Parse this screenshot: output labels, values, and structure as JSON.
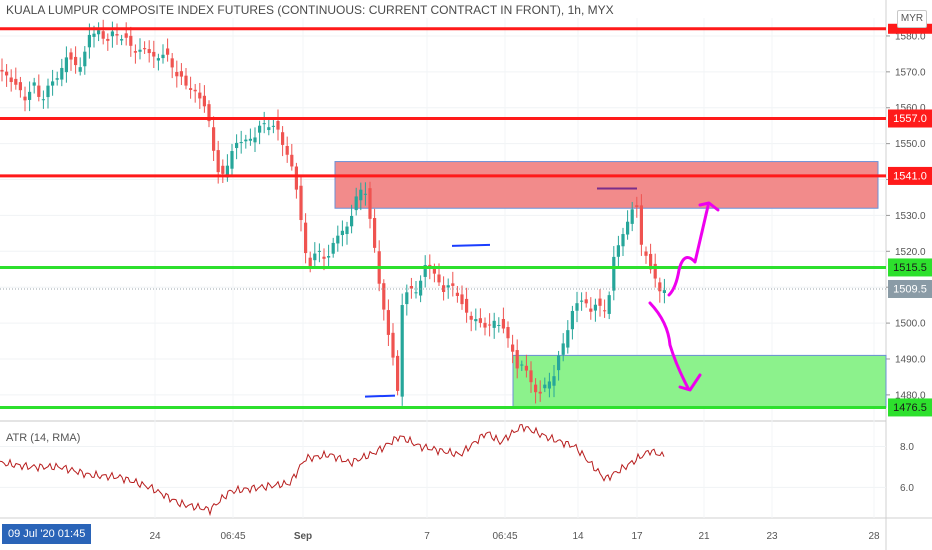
{
  "title": "KUALA LUMPUR COMPOSITE INDEX FUTURES (CONTINUOUS: CURRENT CONTRACT IN FRONT), 1h, MYX",
  "currency": "MYR",
  "indicator_label": "ATR (14, RMA)",
  "crosshair_date": "09 Jul '20   01:45",
  "colors": {
    "up": "#26a69a",
    "down": "#ef5350",
    "resistance": "#ff1a1a",
    "support": "#2de02d",
    "supply_zone": "#f28b8b",
    "demand_zone": "#8cf28c",
    "arrow": "#ee00ee",
    "atr_line": "#b71c1c",
    "last_price_badge": "#8a9ba6"
  },
  "chart_data": {
    "type": "candlestick",
    "ylim": [
      1473,
      1585
    ],
    "yticks": [
      1480.0,
      1490.0,
      1500.0,
      1510.0,
      1520.0,
      1530.0,
      1540.0,
      1550.0,
      1560.0,
      1570.0,
      1580.0
    ],
    "xticks": [
      "24",
      "06:45",
      "Sep",
      "7",
      "06:45",
      "14",
      "17",
      "21",
      "23",
      "28"
    ],
    "price_levels": [
      {
        "value": 1582.0,
        "label": "",
        "kind": "resistance"
      },
      {
        "value": 1557.0,
        "label": "1557.0",
        "kind": "resistance"
      },
      {
        "value": 1541.0,
        "label": "1541.0",
        "kind": "resistance"
      },
      {
        "value": 1515.5,
        "label": "1515.5",
        "kind": "support"
      },
      {
        "value": 1476.5,
        "label": "1476.5",
        "kind": "support"
      }
    ],
    "last_price": {
      "value": 1509.5,
      "label": "1509.5"
    },
    "zones": [
      {
        "kind": "supply",
        "from": 1532,
        "to": 1545
      },
      {
        "kind": "demand",
        "from": 1476.5,
        "to": 1491
      }
    ],
    "close_path": [
      [
        0,
        1571
      ],
      [
        10,
        1568
      ],
      [
        18,
        1565
      ],
      [
        26,
        1563
      ],
      [
        34,
        1566
      ],
      [
        42,
        1562
      ],
      [
        50,
        1567
      ],
      [
        58,
        1568
      ],
      [
        66,
        1575
      ],
      [
        74,
        1571
      ],
      [
        82,
        1573
      ],
      [
        90,
        1580
      ],
      [
        98,
        1582
      ],
      [
        106,
        1578
      ],
      [
        114,
        1581
      ],
      [
        122,
        1580
      ],
      [
        130,
        1577
      ],
      [
        138,
        1576
      ],
      [
        146,
        1576
      ],
      [
        154,
        1574
      ],
      [
        162,
        1575
      ],
      [
        170,
        1573
      ],
      [
        178,
        1569
      ],
      [
        186,
        1566
      ],
      [
        194,
        1565
      ],
      [
        202,
        1562
      ],
      [
        210,
        1555
      ],
      [
        218,
        1542
      ],
      [
        224,
        1540
      ],
      [
        230,
        1548
      ],
      [
        238,
        1550
      ],
      [
        246,
        1551
      ],
      [
        254,
        1552
      ],
      [
        262,
        1555
      ],
      [
        270,
        1556
      ],
      [
        278,
        1553
      ],
      [
        286,
        1548
      ],
      [
        294,
        1542
      ],
      [
        302,
        1526
      ],
      [
        308,
        1516
      ],
      [
        314,
        1518
      ],
      [
        320,
        1520
      ],
      [
        328,
        1518
      ],
      [
        336,
        1524
      ],
      [
        344,
        1526
      ],
      [
        352,
        1530
      ],
      [
        358,
        1536
      ],
      [
        364,
        1540
      ],
      [
        368,
        1531
      ],
      [
        374,
        1522
      ],
      [
        380,
        1510
      ],
      [
        386,
        1500
      ],
      [
        392,
        1492
      ],
      [
        398,
        1480
      ],
      [
        402,
        1506
      ],
      [
        408,
        1509
      ],
      [
        414,
        1508
      ],
      [
        420,
        1512
      ],
      [
        426,
        1516
      ],
      [
        432,
        1515
      ],
      [
        438,
        1512
      ],
      [
        444,
        1509
      ],
      [
        450,
        1510
      ],
      [
        456,
        1510
      ],
      [
        462,
        1505
      ],
      [
        468,
        1501
      ],
      [
        474,
        1502
      ],
      [
        480,
        1500
      ],
      [
        488,
        1498
      ],
      [
        496,
        1502
      ],
      [
        504,
        1497
      ],
      [
        512,
        1494
      ],
      [
        518,
        1486
      ],
      [
        524,
        1489
      ],
      [
        530,
        1484
      ],
      [
        536,
        1481
      ],
      [
        542,
        1480
      ],
      [
        548,
        1484
      ],
      [
        554,
        1486
      ],
      [
        560,
        1491
      ],
      [
        566,
        1497
      ],
      [
        572,
        1503
      ],
      [
        578,
        1506
      ],
      [
        584,
        1506
      ],
      [
        590,
        1504
      ],
      [
        596,
        1505
      ],
      [
        602,
        1503
      ],
      [
        608,
        1506
      ],
      [
        614,
        1518
      ],
      [
        620,
        1523
      ],
      [
        626,
        1527
      ],
      [
        632,
        1532
      ],
      [
        636,
        1534
      ],
      [
        640,
        1522
      ],
      [
        646,
        1520
      ],
      [
        652,
        1513
      ],
      [
        656,
        1511
      ],
      [
        660,
        1509.5
      ],
      [
        666,
        1509.5
      ]
    ],
    "atr": {
      "name": "ATR (14, RMA)",
      "ylim": [
        4.5,
        9.2
      ],
      "yticks": [
        6.0,
        8.0
      ],
      "points": [
        [
          0,
          7.2
        ],
        [
          30,
          7.0
        ],
        [
          60,
          7.0
        ],
        [
          90,
          6.6
        ],
        [
          120,
          6.5
        ],
        [
          150,
          6.0
        ],
        [
          180,
          5.2
        ],
        [
          210,
          4.9
        ],
        [
          230,
          5.8
        ],
        [
          260,
          6.0
        ],
        [
          290,
          6.2
        ],
        [
          305,
          7.4
        ],
        [
          330,
          7.6
        ],
        [
          350,
          7.2
        ],
        [
          375,
          7.7
        ],
        [
          400,
          8.5
        ],
        [
          420,
          8.0
        ],
        [
          440,
          7.8
        ],
        [
          460,
          7.6
        ],
        [
          487,
          8.7
        ],
        [
          500,
          8.2
        ],
        [
          522,
          9.0
        ],
        [
          550,
          8.4
        ],
        [
          575,
          8.0
        ],
        [
          605,
          6.4
        ],
        [
          625,
          7.0
        ],
        [
          650,
          7.8
        ],
        [
          665,
          7.5
        ]
      ]
    }
  }
}
